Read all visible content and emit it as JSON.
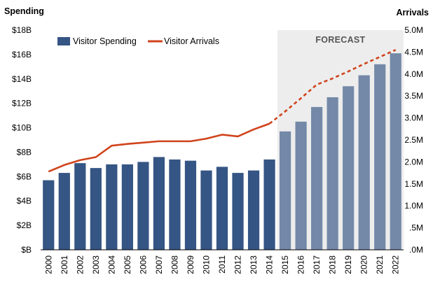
{
  "chart_data": {
    "type": "bar",
    "categories": [
      "2000",
      "2001",
      "2002",
      "2003",
      "2004",
      "2005",
      "2006",
      "2007",
      "2008",
      "2009",
      "2010",
      "2011",
      "2012",
      "2013",
      "2014",
      "2015",
      "2016",
      "2017",
      "2018",
      "2019",
      "2020",
      "2021",
      "2022"
    ],
    "series": [
      {
        "name": "Visitor Spending",
        "type": "bar",
        "axis": "left",
        "color": "#355584",
        "forecast_color": "#7489A8",
        "values": [
          5.7,
          6.3,
          7.1,
          6.7,
          7.0,
          7.0,
          7.2,
          7.6,
          7.4,
          7.3,
          6.5,
          6.8,
          6.3,
          6.5,
          7.4,
          9.7,
          10.5,
          11.7,
          12.5,
          13.4,
          14.3,
          15.2,
          16.1
        ]
      },
      {
        "name": "Visitor Arrivals",
        "type": "line",
        "axis": "right",
        "color": "#D0441C",
        "values": [
          1.78,
          1.93,
          2.04,
          2.11,
          2.37,
          2.41,
          2.44,
          2.47,
          2.47,
          2.47,
          2.53,
          2.62,
          2.58,
          2.74,
          2.87,
          3.15,
          3.45,
          3.76,
          3.9,
          4.06,
          4.23,
          4.39,
          4.55
        ]
      }
    ],
    "forecast_start": "2015",
    "forecast_label": "FORECAST",
    "left_axis": {
      "title": "Spending",
      "ticks": [
        "$B",
        "$2B",
        "$4B",
        "$6B",
        "$8B",
        "$10B",
        "$12B",
        "$14B",
        "$16B",
        "$18B"
      ],
      "range": [
        0,
        18
      ]
    },
    "right_axis": {
      "title": "Arrivals",
      "ticks": [
        ".0M",
        ".5M",
        "1.0M",
        "1.5M",
        "2.0M",
        "2.5M",
        "3.0M",
        "3.5M",
        "4.0M",
        "4.5M",
        "5.0M"
      ],
      "range": [
        0,
        5
      ]
    },
    "legend_placement": "top-left",
    "grid": false
  }
}
